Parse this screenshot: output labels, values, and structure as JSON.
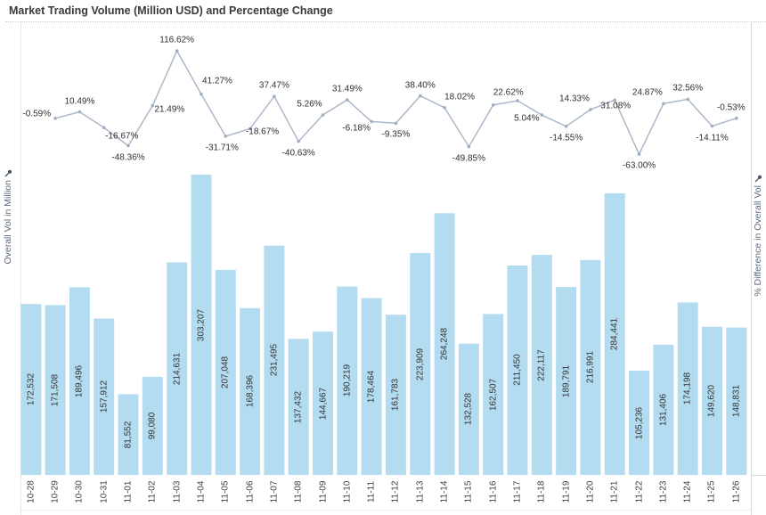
{
  "title": "Market Trading Volume (Million USD) and Percentage Change",
  "axes": {
    "left_label": "Overall Vol in Million",
    "right_label": "% Difference in Overall Vol"
  },
  "colors": {
    "bar": "#b3dcf0",
    "line": "#adb9c9",
    "marker": "#a0aec2",
    "pin": "#44546a"
  },
  "chart_data": {
    "type": "combo-bar-line",
    "title": "Market Trading Volume (Million USD) and Percentage Change",
    "xlabel": "",
    "ylabel_left": "Overall Vol in Million",
    "ylabel_right": "% Difference in Overall Vol",
    "grid": false,
    "legend": "none",
    "bar_axis_range": [
      0,
      310000
    ],
    "line_axis_range": [
      -70,
      120
    ],
    "categories": [
      "10-28",
      "10-29",
      "10-30",
      "10-31",
      "11-01",
      "11-02",
      "11-03",
      "11-04",
      "11-05",
      "11-06",
      "11-07",
      "11-08",
      "11-09",
      "11-10",
      "11-11",
      "11-12",
      "11-13",
      "11-14",
      "11-15",
      "11-16",
      "11-17",
      "11-18",
      "11-19",
      "11-20",
      "11-21",
      "11-22",
      "11-23",
      "11-24",
      "11-25",
      "11-26"
    ],
    "series": [
      {
        "name": "Overall Vol in Million",
        "type": "bar",
        "values": [
          172532,
          171508,
          189496,
          157912,
          81552,
          99080,
          214631,
          303207,
          207048,
          168396,
          231495,
          137432,
          144667,
          190219,
          178464,
          161783,
          223909,
          264248,
          132528,
          162507,
          211450,
          222117,
          189791,
          216991,
          284441,
          105236,
          131406,
          174198,
          149620,
          148831
        ],
        "labels": [
          "172,532",
          "171,508",
          "189,496",
          "157,912",
          "81,552",
          "99,080",
          "214,631",
          "303,207",
          "207,048",
          "168,396",
          "231,495",
          "137,432",
          "144,667",
          "190,219",
          "178,464",
          "161,783",
          "223,909",
          "264,248",
          "132,528",
          "162,507",
          "211,450",
          "222,117",
          "189,791",
          "216,991",
          "284,441",
          "105,236",
          "131,406",
          "174,198",
          "149,620",
          "148,831"
        ]
      },
      {
        "name": "% Difference in Overall Vol",
        "type": "line",
        "start_index": 1,
        "values": [
          -0.59,
          10.49,
          -16.67,
          -48.36,
          21.49,
          116.62,
          41.27,
          -31.71,
          -18.67,
          37.47,
          -40.63,
          5.26,
          31.49,
          -6.18,
          -9.35,
          38.4,
          18.02,
          -49.85,
          22.62,
          30.12,
          5.04,
          -14.55,
          14.33,
          31.08,
          -63.0,
          24.87,
          32.56,
          -14.11,
          -0.53
        ],
        "labels": [
          "-0.59%",
          "10.49%",
          "-16.67%",
          "-48.36%",
          "21.49%",
          "116.62%",
          "41.27%",
          "-31.71%",
          "-18.67%",
          "37.47%",
          "-40.63%",
          "5.26%",
          "31.49%",
          "-6.18%",
          "-9.35%",
          "38.40%",
          "18.02%",
          "-49.85%",
          "22.62%",
          "",
          "5.04%",
          "-14.55%",
          "14.33%",
          "31.08%",
          "-63.00%",
          "24.87%",
          "32.56%",
          "-14.11%",
          "-0.53%"
        ]
      }
    ]
  }
}
